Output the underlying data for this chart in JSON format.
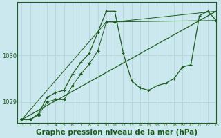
{
  "bg_color": "#cce8ef",
  "grid_color": "#b8d8e0",
  "line_color": "#1a5c1a",
  "xlabel": "Graphe pression niveau de la mer (hPa)",
  "xlabel_fontsize": 7.5,
  "ylim": [
    1028.55,
    1031.15
  ],
  "xlim": [
    -0.5,
    23
  ],
  "yticks": [
    1029,
    1030
  ],
  "xticks": [
    0,
    1,
    2,
    3,
    4,
    5,
    6,
    7,
    8,
    9,
    10,
    11,
    12,
    13,
    14,
    15,
    16,
    17,
    18,
    19,
    20,
    21,
    22,
    23
  ],
  "series1_x": [
    0,
    1,
    2,
    3,
    4,
    5,
    6,
    7,
    8,
    9,
    10,
    11,
    12,
    13,
    14,
    15,
    16,
    17,
    18,
    19,
    20,
    21,
    22,
    23
  ],
  "series1_y": [
    1028.62,
    1028.62,
    1028.75,
    1029.1,
    1029.2,
    1029.25,
    1029.6,
    1029.85,
    1030.05,
    1030.5,
    1030.95,
    1030.95,
    1030.05,
    1029.45,
    1029.3,
    1029.25,
    1029.35,
    1029.4,
    1029.5,
    1029.75,
    1029.8,
    1030.85,
    1030.95,
    1030.75
  ],
  "series2_x": [
    0,
    1,
    2,
    3,
    4,
    5,
    6,
    7,
    8,
    9,
    10,
    11,
    23
  ],
  "series2_y": [
    1028.62,
    1028.62,
    1028.72,
    1029.0,
    1029.05,
    1029.05,
    1029.35,
    1029.6,
    1029.82,
    1030.1,
    1030.72,
    1030.72,
    1030.75
  ],
  "series3_x": [
    0,
    23
  ],
  "series3_y": [
    1028.62,
    1030.95
  ],
  "series4_x": [
    0,
    10,
    11,
    23
  ],
  "series4_y": [
    1028.62,
    1030.72,
    1030.72,
    1030.95
  ]
}
